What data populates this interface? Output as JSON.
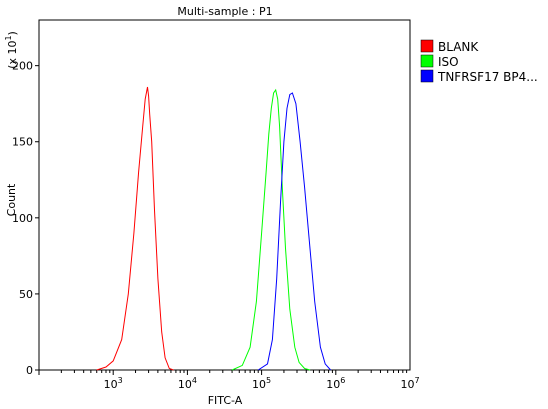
{
  "chart_data": {
    "type": "line",
    "title": "Multi-sample : P1",
    "xlabel": "FITC-A",
    "ylabel": "Count",
    "y_multiplier_label": "(x 10",
    "y_multiplier_exp": "1",
    "x_scale": "log",
    "xlim": [
      100,
      10000000
    ],
    "ylim": [
      0,
      230
    ],
    "grid": false,
    "legend_position": "right",
    "x_ticks": [
      {
        "base": "10",
        "exp": "3",
        "value": 1000
      },
      {
        "base": "10",
        "exp": "4",
        "value": 10000
      },
      {
        "base": "10",
        "exp": "5",
        "value": 100000
      },
      {
        "base": "10",
        "exp": "6",
        "value": 1000000
      },
      {
        "base": "10",
        "exp": "7",
        "value": 10000000
      }
    ],
    "y_ticks": [
      0,
      50,
      100,
      150,
      200
    ],
    "series": [
      {
        "name": "BLANK",
        "color": "#ff0000",
        "x": [
          600,
          800,
          1000,
          1300,
          1600,
          1900,
          2200,
          2500,
          2700,
          2900,
          3000,
          3100,
          3300,
          3600,
          4000,
          4500,
          5000,
          5700,
          6500
        ],
        "y": [
          0,
          2,
          6,
          20,
          50,
          90,
          130,
          160,
          178,
          186,
          180,
          168,
          150,
          105,
          60,
          25,
          8,
          1,
          0
        ]
      },
      {
        "name": "ISO",
        "color": "#00ff00",
        "x": [
          40000,
          55000,
          70000,
          85000,
          100000,
          115000,
          125000,
          135000,
          145000,
          155000,
          165000,
          175000,
          190000,
          210000,
          240000,
          280000,
          320000,
          380000,
          450000
        ],
        "y": [
          0,
          3,
          15,
          45,
          90,
          130,
          155,
          172,
          182,
          184,
          178,
          160,
          120,
          80,
          40,
          15,
          5,
          1,
          0
        ]
      },
      {
        "name": "TNFRSF17 BP4...",
        "color": "#0000ff",
        "x": [
          90000,
          120000,
          140000,
          160000,
          180000,
          200000,
          220000,
          240000,
          260000,
          290000,
          330000,
          380000,
          440000,
          520000,
          620000,
          720000,
          850000
        ],
        "y": [
          0,
          4,
          20,
          60,
          110,
          150,
          172,
          181,
          182,
          175,
          150,
          120,
          85,
          45,
          15,
          4,
          0
        ]
      }
    ]
  }
}
